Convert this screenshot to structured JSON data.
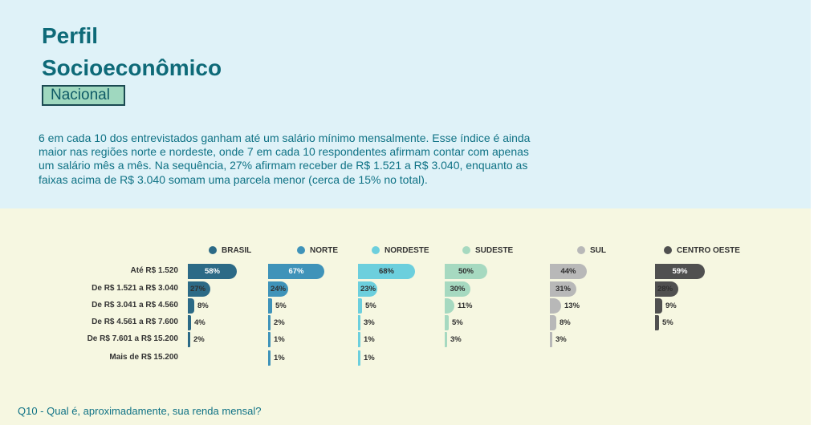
{
  "title_line1": "Perfil",
  "title_line2": "Socioeconômico",
  "badge": "Nacional",
  "intro": "6 em cada 10 dos entrevistados ganham até um salário mínimo mensalmente. Esse índice é ainda maior nas regiões norte e nordeste, onde 7 em cada 10 respondentes afirmam contar com apenas um salário mês a mês. Na sequência, 27% afirmam receber de  R$ 1.521 a R$ 3.040, enquanto as faixas acima de R$ 3.040 somam uma parcela menor (cerca de 15% no total).",
  "footer": "Q10 - Qual é, aproximadamente, sua renda mensal?",
  "chart_data": {
    "type": "bar",
    "orientation": "horizontal",
    "value_suffix": "%",
    "categories": [
      "Até R$ 1.520",
      "De R$ 1.521 a R$ 3.040",
      "De R$ 3.041 a R$ 4.560",
      "De R$ 4.561 a R$ 7.600",
      "De R$ 7.601 a R$ 15.200",
      "Mais de R$ 15.200"
    ],
    "series": [
      {
        "name": "BRASIL",
        "color": "#2c6a86",
        "text_color": "#2f2f2f",
        "values": [
          58,
          27,
          8,
          4,
          2,
          null
        ]
      },
      {
        "name": "NORTE",
        "color": "#3f93b9",
        "text_color": "#2f2f2f",
        "values": [
          67,
          24,
          5,
          2,
          1,
          1
        ]
      },
      {
        "name": "NORDESTE",
        "color": "#6ccfdd",
        "text_color": "#2f2f2f",
        "values": [
          68,
          23,
          5,
          3,
          1,
          1
        ]
      },
      {
        "name": "SUDESTE",
        "color": "#a6d9c0",
        "text_color": "#2f2f2f",
        "values": [
          50,
          30,
          11,
          5,
          3,
          null
        ]
      },
      {
        "name": "SUL",
        "color": "#b8b8b8",
        "text_color": "#2f2f2f",
        "values": [
          44,
          31,
          13,
          8,
          3,
          null
        ]
      },
      {
        "name": "CENTRO OESTE",
        "color": "#505050",
        "text_color": "#2f2f2f",
        "values": [
          59,
          28,
          9,
          5,
          null,
          null
        ]
      }
    ]
  }
}
